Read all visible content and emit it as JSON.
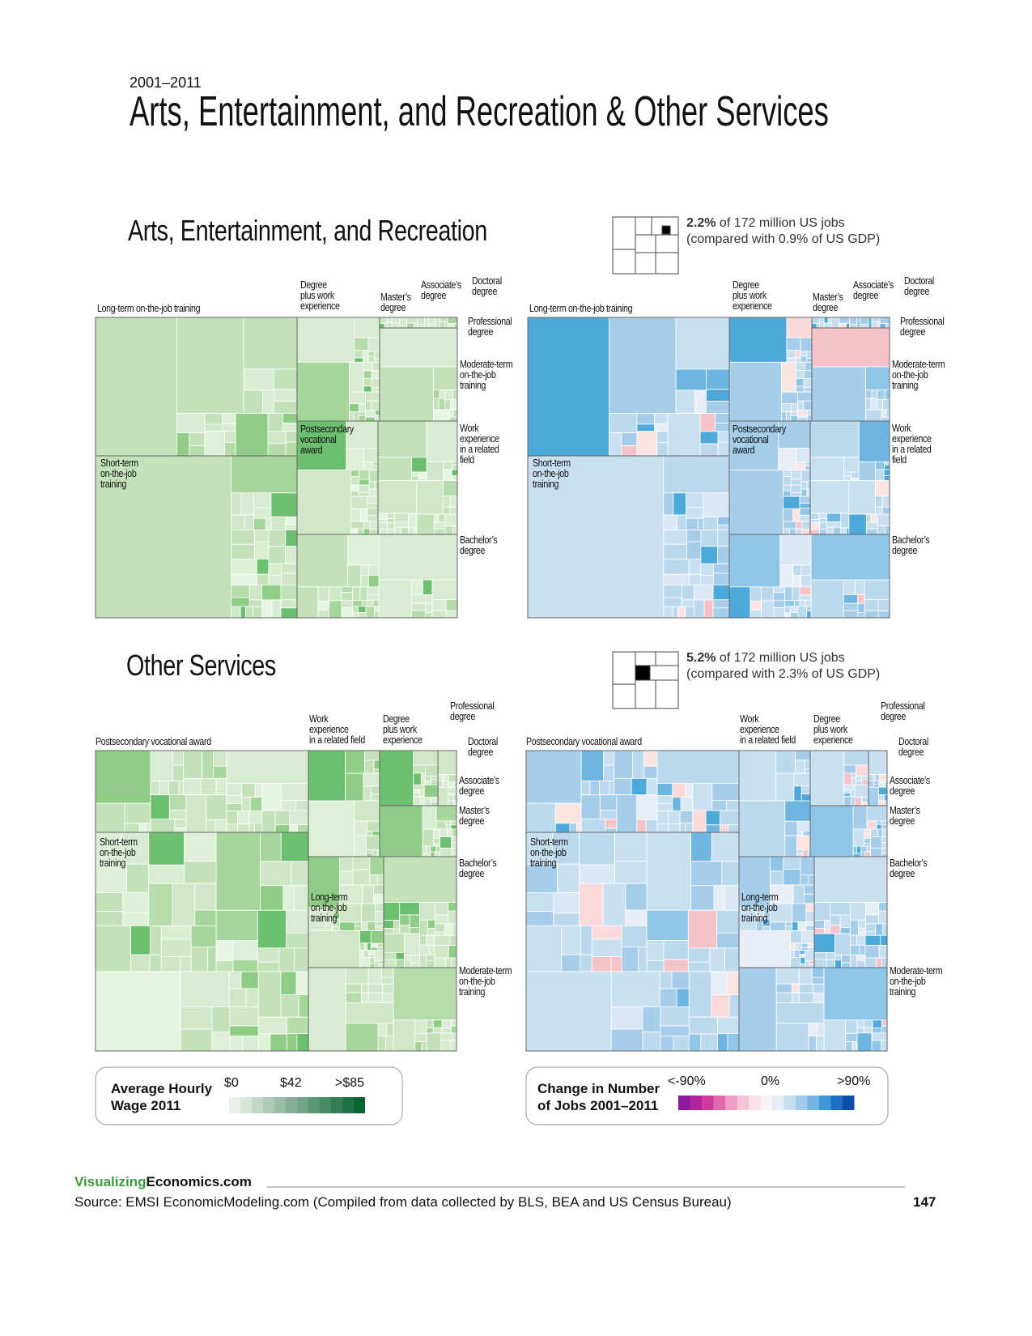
{
  "header": {
    "years": "2001–2011",
    "title": "Arts, Entertainment, and Recreation & Other Services"
  },
  "sections": [
    {
      "title": "Arts, Entertainment, and Recreation",
      "share": "2.2%",
      "share_text": "of 172 million US jobs",
      "compare": "(compared with 0.9% of US GDP)",
      "labels": [
        "Long-term on-the-job training",
        "Degree\nplus work\nexperience",
        "Master’s\ndegree",
        "Associate’s\ndegree",
        "Doctoral\ndegree",
        "Professional\ndegree",
        "Moderate-term\non-the-job\ntraining",
        "Postsecondary\nvocational\naward",
        "Work\nexperience\nin a related\nfield",
        "Short-term\non-the-job\ntraining",
        "Bachelor’s\ndegree"
      ]
    },
    {
      "title": "Other Services",
      "share": "5.2%",
      "share_text": "of 172 million US jobs",
      "compare": "(compared with 2.3% of US GDP)",
      "labels": [
        "Postsecondary vocational award",
        "Work\nexperience\nin a related field",
        "Degree\nplus work\nexperience",
        "Professional\ndegree",
        "Doctoral\ndegree",
        "Associate’s\ndegree",
        "Master’s\ndegree",
        "Short-term\non-the-job\ntraining",
        "Bachelor’s\ndegree",
        "Long-term\non-the-job\ntraining",
        "Moderate-term\non-the-job\ntraining"
      ]
    }
  ],
  "legends": {
    "wage": {
      "title": "Average Hourly\nWage 2011",
      "ticks": [
        "$0",
        "$42",
        ">$85"
      ]
    },
    "change": {
      "title": "Change in Number\nof Jobs 2001–2011",
      "ticks": [
        "<-90%",
        "0%",
        ">90%"
      ]
    }
  },
  "footer": {
    "brand_a": "Visualizing",
    "brand_b": "Economics.com",
    "source": "Source: EMSI EconomicModeling.com (Compiled from data collected by BLS, BEA and US Census Bureau)",
    "page": "147"
  }
}
